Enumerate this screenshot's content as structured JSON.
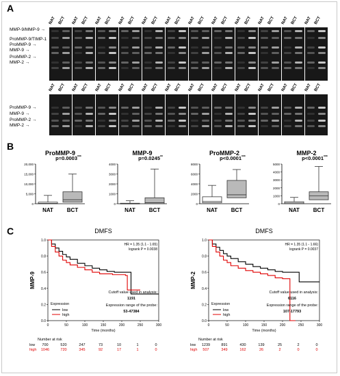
{
  "panels": {
    "a": "A",
    "b": "B",
    "c": "C"
  },
  "gel": {
    "lanes": [
      "NAT",
      "BCT"
    ],
    "top_markers": [
      "MMP-9/MMP-9",
      "ProMMP-9/TIMP-1",
      "ProMMP-9",
      "MMP-9",
      "ProMMP-2",
      "MMP-2"
    ],
    "bottom_markers": [
      "ProMMP-9",
      "MMP-9",
      "ProMMP-2",
      "MMP-2"
    ]
  },
  "chart_data": [
    {
      "type": "box",
      "title": "ProMMP-9",
      "categories": [
        "NAT",
        "BCT"
      ],
      "ylim": [
        0,
        20000
      ],
      "yticks": [
        "0",
        "5,000",
        "10,000",
        "15,000",
        "20,000"
      ],
      "boxes": [
        {
          "min": 0,
          "q1": 0,
          "median": 200,
          "q3": 800,
          "max": 4200
        },
        {
          "min": 0,
          "q1": 800,
          "median": 2000,
          "q3": 6000,
          "max": 15000
        }
      ],
      "annotation": "p=0.0003",
      "stars": "***"
    },
    {
      "type": "box",
      "title": "MMP-9",
      "categories": [
        "NAT",
        "BCT"
      ],
      "ylim": [
        0,
        4000
      ],
      "yticks": [
        "0",
        "1000",
        "2000",
        "3000",
        "4000"
      ],
      "boxes": [
        {
          "min": 0,
          "q1": 0,
          "median": 0,
          "q3": 50,
          "max": 300
        },
        {
          "min": 0,
          "q1": 0,
          "median": 100,
          "q3": 600,
          "max": 3500
        }
      ],
      "annotation": "p=0.0245",
      "stars": "**"
    },
    {
      "type": "box",
      "title": "ProMMP-2",
      "categories": [
        "NAT",
        "BCT"
      ],
      "ylim": [
        0,
        8000
      ],
      "yticks": [
        "0",
        "2000",
        "4000",
        "6000",
        "8000"
      ],
      "boxes": [
        {
          "min": 0,
          "q1": 200,
          "median": 500,
          "q3": 1400,
          "max": 3700
        },
        {
          "min": 0,
          "q1": 1200,
          "median": 1800,
          "q3": 4700,
          "max": 6900
        }
      ],
      "annotation": "p<0.0001",
      "stars": "***"
    },
    {
      "type": "box",
      "title": "MMP-2",
      "categories": [
        "NAT",
        "BCT"
      ],
      "ylim": [
        0,
        5000
      ],
      "yticks": [
        "0",
        "1000",
        "2000",
        "3000",
        "4000",
        "5000"
      ],
      "boxes": [
        {
          "min": 0,
          "q1": 0,
          "median": 100,
          "q3": 250,
          "max": 800
        },
        {
          "min": 0,
          "q1": 500,
          "median": 1000,
          "q3": 1500,
          "max": 4700
        }
      ],
      "annotation": "p<0.0001",
      "stars": "***"
    },
    {
      "type": "line",
      "title": "DMFS",
      "ylabel": "MMP-9",
      "xlabel": "Time (months)",
      "xlim": [
        0,
        300
      ],
      "ylim": [
        0,
        1
      ],
      "xticks": [
        "0",
        "50",
        "100",
        "150",
        "200",
        "250",
        "300"
      ],
      "yticks": [
        "0.0",
        "0.2",
        "0.4",
        "0.6",
        "0.8",
        "1.0"
      ],
      "hr": "HR = 1.35 (1.1 - 1.65)",
      "logrank": "logrank P = 0.0038",
      "cutoff_label": "Cutoff value used in analysis:",
      "cutoff": "1191",
      "range_label": "Expression range of the probe:",
      "range": "53-47384",
      "legend_title": "Expression",
      "legend": [
        "low",
        "high"
      ],
      "series": [
        {
          "name": "low",
          "color": "#000000",
          "x": [
            0,
            10,
            20,
            30,
            40,
            50,
            60,
            80,
            100,
            120,
            140,
            160,
            180,
            200,
            225,
            225,
            300
          ],
          "y": [
            1.0,
            0.95,
            0.9,
            0.86,
            0.82,
            0.79,
            0.76,
            0.71,
            0.68,
            0.65,
            0.63,
            0.61,
            0.6,
            0.6,
            0.6,
            0.33,
            0.33
          ]
        },
        {
          "name": "high",
          "color": "#e00000",
          "x": [
            0,
            10,
            20,
            30,
            40,
            50,
            60,
            80,
            100,
            120,
            140,
            160,
            175,
            200,
            210,
            215,
            250
          ],
          "y": [
            1.0,
            0.92,
            0.85,
            0.8,
            0.75,
            0.72,
            0.69,
            0.66,
            0.63,
            0.6,
            0.58,
            0.58,
            0.57,
            0.57,
            0.56,
            0.38,
            0.38
          ]
        }
      ],
      "risk_title": "Number at risk",
      "risk": [
        {
          "label": "low",
          "values": [
            "700",
            "520",
            "247",
            "73",
            "10",
            "1",
            "0"
          ]
        },
        {
          "label": "high",
          "values": [
            "1046",
            "720",
            "345",
            "92",
            "17",
            "1",
            "0"
          ]
        }
      ]
    },
    {
      "type": "line",
      "title": "DMFS",
      "ylabel": "MMP-2",
      "xlabel": "Time (months)",
      "xlim": [
        0,
        300
      ],
      "ylim": [
        0,
        1
      ],
      "xticks": [
        "0",
        "50",
        "100",
        "150",
        "200",
        "250",
        "300"
      ],
      "yticks": [
        "0.0",
        "0.2",
        "0.4",
        "0.6",
        "0.8",
        "1.0"
      ],
      "hr": "HR = 1.35 (1.1 - 1.66)",
      "logrank": "logrank P = 0.0037",
      "cutoff_label": "Cutoff value used in analysis:",
      "cutoff": "6116",
      "range_label": "Expression range of the probe:",
      "range": "107-17793",
      "legend_title": "Expression",
      "legend": [
        "low",
        "high"
      ],
      "series": [
        {
          "name": "low",
          "color": "#000000",
          "x": [
            0,
            10,
            20,
            30,
            40,
            50,
            60,
            80,
            100,
            120,
            140,
            160,
            180,
            200,
            220,
            245,
            245,
            300
          ],
          "y": [
            1.0,
            0.95,
            0.91,
            0.87,
            0.83,
            0.8,
            0.77,
            0.73,
            0.7,
            0.67,
            0.65,
            0.63,
            0.61,
            0.6,
            0.6,
            0.6,
            0.48,
            0.48
          ]
        },
        {
          "name": "high",
          "color": "#e00000",
          "x": [
            0,
            10,
            20,
            30,
            40,
            50,
            60,
            80,
            100,
            120,
            140,
            160,
            180,
            200,
            220,
            220,
            235
          ],
          "y": [
            1.0,
            0.92,
            0.85,
            0.8,
            0.75,
            0.72,
            0.68,
            0.65,
            0.62,
            0.6,
            0.58,
            0.56,
            0.53,
            0.52,
            0.52,
            0.0,
            0.0
          ]
        }
      ],
      "risk_title": "Number at risk",
      "risk": [
        {
          "label": "low",
          "values": [
            "1239",
            "891",
            "430",
            "139",
            "25",
            "2",
            "0"
          ]
        },
        {
          "label": "high",
          "values": [
            "507",
            "349",
            "162",
            "26",
            "2",
            "0",
            "0"
          ]
        }
      ]
    }
  ]
}
